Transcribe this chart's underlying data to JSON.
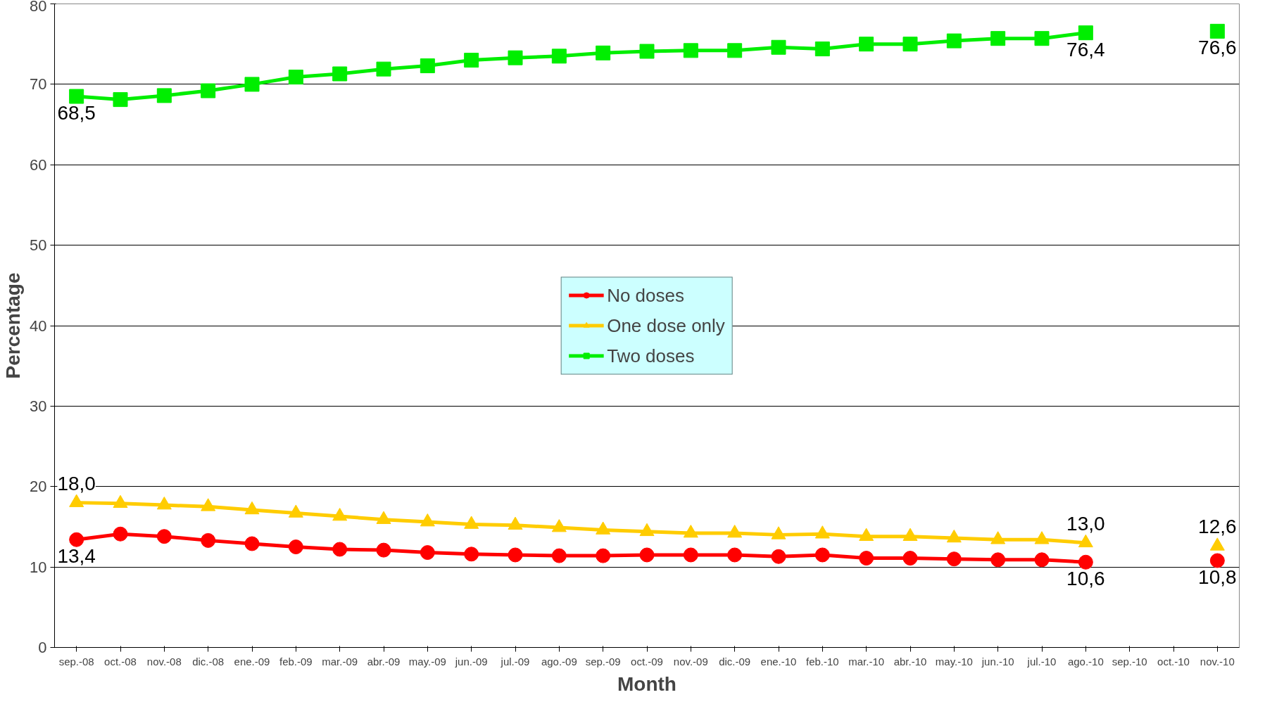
{
  "chart_data": {
    "type": "line",
    "xlabel": "Month",
    "ylabel": "Percentage",
    "categories": [
      "sep.-08",
      "oct.-08",
      "nov.-08",
      "dic.-08",
      "ene.-09",
      "feb.-09",
      "mar.-09",
      "abr.-09",
      "may.-09",
      "jun.-09",
      "jul.-09",
      "ago.-09",
      "sep.-09",
      "oct.-09",
      "nov.-09",
      "dic.-09",
      "ene.-10",
      "feb.-10",
      "mar.-10",
      "abr.-10",
      "may.-10",
      "jun.-10",
      "jul.-10",
      "ago.-10",
      "sep.-10",
      "oct.-10",
      "nov.-10"
    ],
    "series": [
      {
        "name": "No doses",
        "color": "#ff0000",
        "marker": "circle",
        "values": [
          13.4,
          14.1,
          13.8,
          13.3,
          12.9,
          12.5,
          12.2,
          12.1,
          11.8,
          11.6,
          11.5,
          11.4,
          11.4,
          11.5,
          11.5,
          11.5,
          11.3,
          11.5,
          11.1,
          11.1,
          11.0,
          10.9,
          10.9,
          10.6,
          null,
          null,
          10.8
        ],
        "value_labels": [
          "13,4",
          null,
          null,
          null,
          null,
          null,
          null,
          null,
          null,
          null,
          null,
          null,
          null,
          null,
          null,
          null,
          null,
          null,
          null,
          null,
          null,
          null,
          null,
          "10,6",
          null,
          null,
          "10,8"
        ]
      },
      {
        "name": "One dose only",
        "color": "#ffcc00",
        "marker": "triangle",
        "values": [
          18.0,
          17.9,
          17.7,
          17.5,
          17.1,
          16.7,
          16.3,
          15.9,
          15.6,
          15.3,
          15.2,
          14.9,
          14.6,
          14.4,
          14.2,
          14.2,
          14.0,
          14.1,
          13.8,
          13.8,
          13.6,
          13.4,
          13.4,
          13.0,
          null,
          null,
          12.6
        ],
        "value_labels": [
          "18,0",
          null,
          null,
          null,
          null,
          null,
          null,
          null,
          null,
          null,
          null,
          null,
          null,
          null,
          null,
          null,
          null,
          null,
          null,
          null,
          null,
          null,
          null,
          "13,0",
          null,
          null,
          "12,6"
        ]
      },
      {
        "name": "Two doses",
        "color": "#00ee00",
        "marker": "square",
        "values": [
          68.5,
          68.1,
          68.6,
          69.2,
          70.0,
          70.9,
          71.3,
          71.9,
          72.3,
          73.0,
          73.3,
          73.5,
          73.9,
          74.1,
          74.2,
          74.2,
          74.6,
          74.4,
          75.0,
          75.0,
          75.4,
          75.7,
          75.7,
          76.4,
          null,
          null,
          76.6
        ],
        "value_labels": [
          "68,5",
          null,
          null,
          null,
          null,
          null,
          null,
          null,
          null,
          null,
          null,
          null,
          null,
          null,
          null,
          null,
          null,
          null,
          null,
          null,
          null,
          null,
          null,
          "76,4",
          null,
          null,
          "76,6"
        ]
      }
    ],
    "ylim": [
      0,
      80
    ],
    "yticks": [
      0,
      10,
      20,
      30,
      40,
      50,
      60,
      70,
      80
    ],
    "grid": "y",
    "legend": "center",
    "line_style": "solid"
  }
}
